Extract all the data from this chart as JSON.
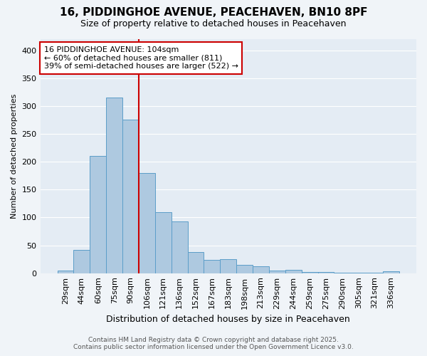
{
  "title": "16, PIDDINGHOE AVENUE, PEACEHAVEN, BN10 8PF",
  "subtitle": "Size of property relative to detached houses in Peacehaven",
  "xlabel": "Distribution of detached houses by size in Peacehaven",
  "ylabel": "Number of detached properties",
  "categories": [
    "29sqm",
    "44sqm",
    "60sqm",
    "75sqm",
    "90sqm",
    "106sqm",
    "121sqm",
    "136sqm",
    "152sqm",
    "167sqm",
    "183sqm",
    "198sqm",
    "213sqm",
    "229sqm",
    "244sqm",
    "259sqm",
    "275sqm",
    "290sqm",
    "305sqm",
    "321sqm",
    "336sqm"
  ],
  "values": [
    5,
    42,
    211,
    315,
    275,
    180,
    110,
    93,
    38,
    24,
    25,
    15,
    12,
    5,
    6,
    2,
    2,
    1,
    1,
    1,
    3
  ],
  "bar_color": "#aec9e0",
  "bar_edge_color": "#5b9ec9",
  "vline_color": "#cc0000",
  "vline_index": 5,
  "annotation_text": "16 PIDDINGHOE AVENUE: 104sqm\n← 60% of detached houses are smaller (811)\n39% of semi-detached houses are larger (522) →",
  "annotation_box_edgecolor": "#cc0000",
  "ylim": [
    0,
    420
  ],
  "yticks": [
    0,
    50,
    100,
    150,
    200,
    250,
    300,
    350,
    400
  ],
  "footer_line1": "Contains HM Land Registry data © Crown copyright and database right 2025.",
  "footer_line2": "Contains public sector information licensed under the Open Government Licence v3.0.",
  "bg_color": "#f0f4f8",
  "plot_bg_color": "#e4ecf4",
  "grid_color": "white",
  "title_fontsize": 11,
  "subtitle_fontsize": 9,
  "xlabel_fontsize": 9,
  "ylabel_fontsize": 8,
  "tick_fontsize": 8,
  "ann_fontsize": 8,
  "footer_fontsize": 6.5
}
